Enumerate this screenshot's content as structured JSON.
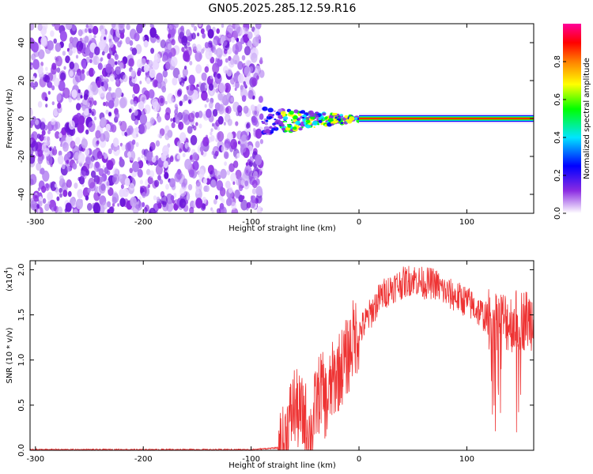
{
  "title": "GN05.2025.285.12.59.R16",
  "spectrogram": {
    "type": "heatmap",
    "xlabel": "Height of straight line (km)",
    "ylabel": "Frequency (Hz)",
    "xlim": [
      -305,
      162
    ],
    "ylim": [
      -50,
      50
    ],
    "x_ticks": [
      -300,
      -200,
      -100,
      0,
      100
    ],
    "x_tick_labels": [
      "-300",
      "-200",
      "-100",
      "0",
      "100"
    ],
    "y_ticks": [
      40,
      20,
      0,
      -20,
      -40
    ],
    "y_tick_labels": [
      "40",
      "20",
      "0",
      "-20",
      "-40"
    ],
    "colorbar": {
      "label": "Normalized spectral amplitude",
      "range": [
        0,
        1
      ],
      "ticks": [
        0.0,
        0.2,
        0.4,
        0.6,
        0.8
      ],
      "tick_labels": [
        "0.0",
        "0.2",
        "0.4",
        "0.6",
        "0.8"
      ],
      "colors": [
        "#ffffff",
        "#8a2be2",
        "#0000ff",
        "#00e5ff",
        "#00ff00",
        "#ffff00",
        "#ff8000",
        "#ff0000",
        "#ff0099"
      ]
    },
    "regions": [
      {
        "name": "noise",
        "x": [
          -305,
          -90
        ],
        "f": [
          -50,
          50
        ],
        "amplitude": 0.15
      },
      {
        "name": "transition",
        "x": [
          -90,
          0
        ],
        "f": [
          -10,
          5
        ],
        "amplitude": 0.45
      },
      {
        "name": "carrier",
        "x": [
          0,
          162
        ],
        "f": [
          -1,
          1
        ],
        "amplitude": 0.9
      }
    ]
  },
  "chart_data": {
    "type": "line",
    "title": "",
    "xlabel": "Height of straight line (km)",
    "ylabel": "SNR (10 * v/v)",
    "scale_label": "(x10",
    "scale_exponent": "4",
    "xlim": [
      -305,
      162
    ],
    "ylim": [
      0,
      2.1
    ],
    "x_ticks": [
      -300,
      -200,
      -100,
      0,
      100
    ],
    "x_tick_labels": [
      "-300",
      "-200",
      "-100",
      "0",
      "100"
    ],
    "y_ticks": [
      0,
      0.5,
      1,
      1.5,
      2
    ],
    "y_tick_labels": [
      "0.0",
      "0.5",
      "1.0",
      "1.5",
      "2.0"
    ],
    "color": "#ee3333",
    "series": [
      {
        "x": [
          -305,
          -250,
          -200,
          -150,
          -100,
          -75,
          -70,
          -65,
          -60,
          -55,
          -50,
          -45,
          -40,
          -35,
          -30,
          -25,
          -20,
          -15,
          -10,
          -5,
          0,
          10,
          20,
          30,
          40,
          50,
          60,
          70,
          80,
          90,
          100,
          110,
          120,
          130,
          140,
          150,
          162
        ],
        "values": [
          0.0,
          0.0,
          0.0,
          0.0,
          0.0,
          0.02,
          0.05,
          0.3,
          0.5,
          0.4,
          0.35,
          0.15,
          0.5,
          0.7,
          0.5,
          0.75,
          0.85,
          0.95,
          1.05,
          1.25,
          1.3,
          1.5,
          1.7,
          1.8,
          1.85,
          1.9,
          1.85,
          1.85,
          1.75,
          1.7,
          1.65,
          1.55,
          1.45,
          1.45,
          1.42,
          1.45,
          1.45
        ]
      }
    ]
  }
}
